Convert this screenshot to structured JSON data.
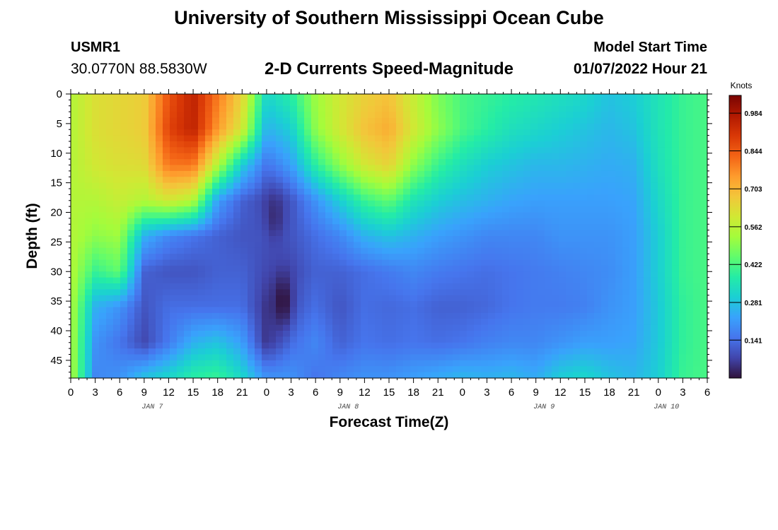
{
  "header": {
    "title": "University of Southern Mississippi Ocean Cube",
    "station": "USMR1",
    "coords": "30.0770N  88.5830W",
    "subtitle": "2-D Currents Speed-Magnitude",
    "start_label": "Model Start Time",
    "start_value": "01/07/2022 Hour 21"
  },
  "footer": {
    "title": "University of Southern Mississippi Ocean Cube"
  },
  "chart_data": {
    "type": "heatmap",
    "title": "2-D Currents Speed-Magnitude",
    "xlabel": "Forecast Time(Z)",
    "ylabel": "Depth (ft)",
    "x_tick_labels": [
      "0",
      "3",
      "6",
      "9",
      "12",
      "15",
      "18",
      "21",
      "0",
      "3",
      "6",
      "9",
      "12",
      "15",
      "18",
      "21",
      "0",
      "3",
      "6",
      "9",
      "12",
      "15",
      "18",
      "21",
      "0",
      "3",
      "6"
    ],
    "x_date_labels": [
      {
        "label": "JAN 7",
        "hour_index": 10
      },
      {
        "label": "JAN 8",
        "hour_index": 34
      },
      {
        "label": "JAN 9",
        "hour_index": 58
      },
      {
        "label": "JAN 10",
        "hour_index": 73
      }
    ],
    "xlim_hours": [
      0,
      78
    ],
    "y_ticks": [
      0,
      5,
      10,
      15,
      20,
      25,
      30,
      35,
      40,
      45
    ],
    "ylim": [
      0,
      48
    ],
    "y_inverted": true,
    "colorbar": {
      "units": "Knots",
      "ticks": [
        "0.984",
        "0.844",
        "0.703",
        "0.562",
        "0.422",
        "0.281",
        "0.141"
      ],
      "tick_values": [
        0.984,
        0.844,
        0.703,
        0.562,
        0.422,
        0.281,
        0.141
      ],
      "range": [
        0.0,
        1.05
      ],
      "colors": [
        "#30123b",
        "#4145ab",
        "#4675ed",
        "#39a2fc",
        "#1bcfd4",
        "#24eca6",
        "#61fc6c",
        "#a4fc3b",
        "#d1e834",
        "#f3c63a",
        "#fe9b2d",
        "#f36315",
        "#d93806",
        "#b11901",
        "#7a0402"
      ]
    },
    "field_description": "current speed (knots) as function of forecast hour and depth",
    "grid_hours": [
      0,
      3,
      6,
      9,
      12,
      15,
      18,
      21,
      24,
      27,
      30,
      33,
      36,
      39,
      42,
      45,
      48,
      51,
      54,
      57,
      60,
      63,
      66,
      69,
      72,
      75,
      78
    ],
    "grid_depths": [
      0,
      6,
      12,
      18,
      24,
      30,
      36,
      42,
      48
    ],
    "values": [
      [
        0.55,
        0.55,
        0.55,
        0.55,
        0.55,
        0.55,
        0.55,
        0.55,
        0.55
      ],
      [
        0.62,
        0.62,
        0.6,
        0.55,
        0.5,
        0.4,
        0.25,
        0.2,
        0.18
      ],
      [
        0.64,
        0.64,
        0.62,
        0.58,
        0.52,
        0.45,
        0.2,
        0.15,
        0.2
      ],
      [
        0.66,
        0.66,
        0.63,
        0.55,
        0.25,
        0.12,
        0.1,
        0.08,
        0.28
      ],
      [
        0.85,
        0.88,
        0.8,
        0.6,
        0.18,
        0.1,
        0.14,
        0.16,
        0.32
      ],
      [
        0.95,
        0.95,
        0.8,
        0.55,
        0.15,
        0.1,
        0.14,
        0.25,
        0.38
      ],
      [
        0.8,
        0.75,
        0.55,
        0.22,
        0.12,
        0.12,
        0.14,
        0.28,
        0.4
      ],
      [
        0.65,
        0.6,
        0.3,
        0.12,
        0.1,
        0.12,
        0.14,
        0.22,
        0.32
      ],
      [
        0.32,
        0.25,
        0.15,
        0.08,
        0.1,
        0.08,
        0.05,
        0.05,
        0.2
      ],
      [
        0.38,
        0.3,
        0.22,
        0.1,
        0.1,
        0.08,
        0.1,
        0.14,
        0.2
      ],
      [
        0.52,
        0.5,
        0.38,
        0.2,
        0.14,
        0.12,
        0.14,
        0.18,
        0.15
      ],
      [
        0.6,
        0.6,
        0.5,
        0.3,
        0.18,
        0.12,
        0.1,
        0.12,
        0.18
      ],
      [
        0.65,
        0.68,
        0.6,
        0.4,
        0.25,
        0.14,
        0.14,
        0.15,
        0.2
      ],
      [
        0.68,
        0.72,
        0.65,
        0.45,
        0.28,
        0.16,
        0.13,
        0.14,
        0.2
      ],
      [
        0.58,
        0.6,
        0.5,
        0.35,
        0.25,
        0.18,
        0.14,
        0.15,
        0.22
      ],
      [
        0.48,
        0.5,
        0.4,
        0.3,
        0.22,
        0.16,
        0.12,
        0.14,
        0.24
      ],
      [
        0.42,
        0.42,
        0.34,
        0.27,
        0.2,
        0.15,
        0.12,
        0.15,
        0.26
      ],
      [
        0.4,
        0.38,
        0.3,
        0.25,
        0.18,
        0.14,
        0.13,
        0.17,
        0.25
      ],
      [
        0.38,
        0.34,
        0.28,
        0.23,
        0.18,
        0.15,
        0.15,
        0.18,
        0.26
      ],
      [
        0.36,
        0.32,
        0.26,
        0.22,
        0.18,
        0.16,
        0.16,
        0.18,
        0.24
      ],
      [
        0.34,
        0.3,
        0.26,
        0.22,
        0.2,
        0.17,
        0.16,
        0.2,
        0.3
      ],
      [
        0.32,
        0.28,
        0.25,
        0.22,
        0.2,
        0.18,
        0.17,
        0.22,
        0.32
      ],
      [
        0.28,
        0.26,
        0.24,
        0.22,
        0.2,
        0.19,
        0.2,
        0.22,
        0.28
      ],
      [
        0.3,
        0.28,
        0.25,
        0.23,
        0.22,
        0.22,
        0.22,
        0.23,
        0.26
      ],
      [
        0.35,
        0.35,
        0.34,
        0.32,
        0.3,
        0.3,
        0.29,
        0.29,
        0.3
      ],
      [
        0.4,
        0.4,
        0.4,
        0.4,
        0.4,
        0.4,
        0.39,
        0.39,
        0.4
      ],
      [
        0.42,
        0.42,
        0.42,
        0.42,
        0.42,
        0.42,
        0.42,
        0.42,
        0.42
      ]
    ],
    "local_minima": [
      {
        "hour": 26,
        "depth": 35,
        "value": 0.0
      },
      {
        "hour": 25,
        "depth": 20.5,
        "value": 0.04
      }
    ]
  }
}
